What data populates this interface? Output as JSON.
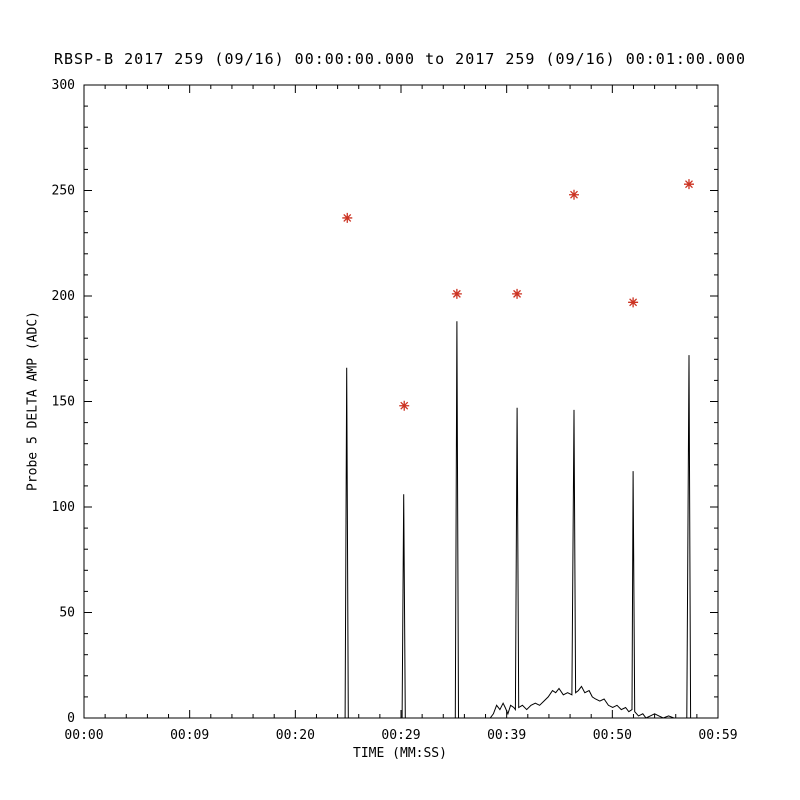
{
  "chart_data": {
    "type": "line",
    "title": "RBSP-B 2017 259 (09/16) 00:00:00.000 to 2017 259 (09/16) 00:01:00.000",
    "xlabel": "TIME (MM:SS)",
    "ylabel": "Probe 5 DELTA AMP (ADC)",
    "xlim": [
      0,
      59
    ],
    "ylim": [
      0,
      300
    ],
    "grid": false,
    "legend": null,
    "line_color": "#000000",
    "marker_color": "#cc3322",
    "marker_style": "asterisk",
    "x_ticks": [
      {
        "pos": 0,
        "label": "00:00"
      },
      {
        "pos": 9.833,
        "label": "00:09"
      },
      {
        "pos": 19.667,
        "label": "00:20"
      },
      {
        "pos": 29.5,
        "label": "00:29"
      },
      {
        "pos": 39.333,
        "label": "00:39"
      },
      {
        "pos": 49.167,
        "label": "00:50"
      },
      {
        "pos": 59,
        "label": "00:59"
      }
    ],
    "x_minor_per_major": 4,
    "y_ticks": [
      0,
      50,
      100,
      150,
      200,
      250,
      300
    ],
    "y_minor_step": 10,
    "series": [
      {
        "name": "Probe 5 DELTA AMP (ADC)",
        "points": [
          [
            0,
            0
          ],
          [
            5,
            0
          ],
          [
            10,
            0
          ],
          [
            15,
            0
          ],
          [
            20,
            0
          ],
          [
            24.3,
            0
          ],
          [
            24.45,
            166
          ],
          [
            24.6,
            0
          ],
          [
            29.6,
            0
          ],
          [
            29.75,
            106
          ],
          [
            29.9,
            0
          ],
          [
            34.55,
            0
          ],
          [
            34.7,
            188
          ],
          [
            34.85,
            0
          ],
          [
            37.8,
            0
          ],
          [
            38.1,
            2
          ],
          [
            38.4,
            6
          ],
          [
            38.7,
            4
          ],
          [
            39.0,
            7
          ],
          [
            39.2,
            5
          ],
          [
            39.45,
            2
          ],
          [
            39.7,
            6
          ],
          [
            40.0,
            5
          ],
          [
            40.15,
            4
          ],
          [
            40.3,
            147
          ],
          [
            40.45,
            5
          ],
          [
            40.8,
            6
          ],
          [
            41.2,
            4
          ],
          [
            41.6,
            6
          ],
          [
            42.0,
            7
          ],
          [
            42.4,
            6
          ],
          [
            42.8,
            8
          ],
          [
            43.2,
            10
          ],
          [
            43.6,
            13
          ],
          [
            43.9,
            12
          ],
          [
            44.2,
            14
          ],
          [
            44.6,
            11
          ],
          [
            45.0,
            12
          ],
          [
            45.4,
            11
          ],
          [
            45.6,
            146
          ],
          [
            45.75,
            12
          ],
          [
            46.0,
            13
          ],
          [
            46.3,
            15
          ],
          [
            46.6,
            12
          ],
          [
            47.0,
            13
          ],
          [
            47.3,
            10
          ],
          [
            47.6,
            9
          ],
          [
            48.0,
            8
          ],
          [
            48.4,
            9
          ],
          [
            48.8,
            6
          ],
          [
            49.2,
            5
          ],
          [
            49.6,
            6
          ],
          [
            50.0,
            4
          ],
          [
            50.4,
            5
          ],
          [
            50.7,
            3
          ],
          [
            51.0,
            4
          ],
          [
            51.1,
            117
          ],
          [
            51.25,
            3
          ],
          [
            51.6,
            1
          ],
          [
            52.0,
            2
          ],
          [
            52.3,
            0
          ],
          [
            52.7,
            1
          ],
          [
            53.1,
            2
          ],
          [
            53.5,
            1
          ],
          [
            53.9,
            0
          ],
          [
            54.4,
            1
          ],
          [
            54.9,
            0
          ],
          [
            55.5,
            0
          ],
          [
            56.1,
            0
          ],
          [
            56.3,
            172
          ],
          [
            56.45,
            0
          ],
          [
            57.0,
            0
          ],
          [
            58.0,
            0
          ],
          [
            59.0,
            0
          ]
        ]
      }
    ],
    "peak_markers": [
      [
        24.5,
        237
      ],
      [
        29.8,
        148
      ],
      [
        34.7,
        201
      ],
      [
        40.3,
        201
      ],
      [
        45.6,
        248
      ],
      [
        51.1,
        197
      ],
      [
        56.3,
        253
      ]
    ]
  }
}
